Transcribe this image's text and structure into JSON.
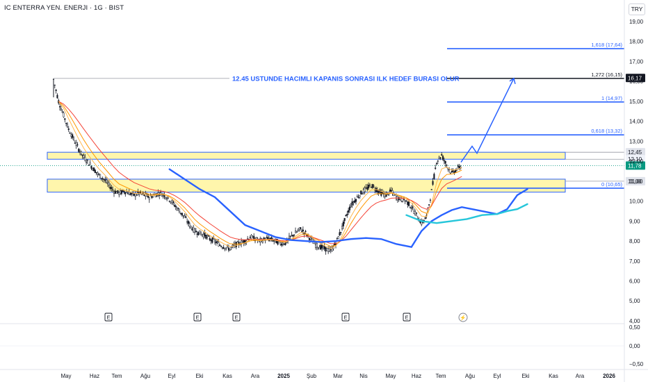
{
  "header": {
    "symbol_info": "IC ENTERRA YEN. ENERJI · 1G · BIST",
    "currency": "TRY"
  },
  "chart_data": {
    "type": "candlestick",
    "y_axis": {
      "ticks": [
        "19,00",
        "18,00",
        "17,00",
        "16,00",
        "15,00",
        "14,00",
        "13,00",
        "12,00",
        "11,00",
        "10,00",
        "9,00",
        "8,00",
        "7,00",
        "6,00",
        "5,00",
        "4,00"
      ],
      "tick_values": [
        19,
        18,
        17,
        16,
        15,
        14,
        13,
        12,
        11,
        10,
        9,
        8,
        7,
        6,
        5,
        4
      ]
    },
    "x_axis": {
      "ticks": [
        "May",
        "Haz",
        "Tem",
        "Ağu",
        "Eyl",
        "Eki",
        "Kas",
        "Ara",
        "2025",
        "Şub",
        "Mar",
        "Nis",
        "May",
        "Haz",
        "Tem",
        "Ağu",
        "Eyl",
        "Eki",
        "Kas",
        "Ara",
        "2026"
      ]
    },
    "price_path": [
      [
        0,
        16.1
      ],
      [
        1,
        15.0
      ],
      [
        2,
        14.3
      ],
      [
        3,
        13.6
      ],
      [
        4,
        13.1
      ],
      [
        5,
        12.6
      ],
      [
        6,
        12.2
      ],
      [
        7,
        11.9
      ],
      [
        8,
        11.6
      ],
      [
        9,
        11.3
      ],
      [
        10,
        11.1
      ],
      [
        11,
        10.8
      ],
      [
        12,
        10.5
      ],
      [
        13,
        10.4
      ],
      [
        14,
        10.5
      ],
      [
        15,
        10.4
      ],
      [
        16,
        10.3
      ],
      [
        17,
        10.4
      ],
      [
        18,
        10.3
      ],
      [
        19,
        10.2
      ],
      [
        20,
        10.3
      ],
      [
        21,
        10.4
      ],
      [
        22,
        10.3
      ],
      [
        23,
        10.1
      ],
      [
        24,
        9.8
      ],
      [
        25,
        9.5
      ],
      [
        26,
        9.2
      ],
      [
        27,
        8.8
      ],
      [
        28,
        8.5
      ],
      [
        29,
        8.4
      ],
      [
        30,
        8.3
      ],
      [
        31,
        8.1
      ],
      [
        32,
        8.0
      ],
      [
        33,
        7.8
      ],
      [
        34,
        7.7
      ],
      [
        35,
        7.6
      ],
      [
        36,
        7.8
      ],
      [
        37,
        7.9
      ],
      [
        38,
        8.0
      ],
      [
        39,
        8.2
      ],
      [
        40,
        8.1
      ],
      [
        41,
        8.0
      ],
      [
        42,
        8.1
      ],
      [
        43,
        8.1
      ],
      [
        44,
        8.0
      ],
      [
        45,
        7.9
      ],
      [
        46,
        7.9
      ],
      [
        47,
        8.2
      ],
      [
        48,
        8.4
      ],
      [
        49,
        8.6
      ],
      [
        50,
        8.4
      ],
      [
        51,
        8.1
      ],
      [
        52,
        7.8
      ],
      [
        53,
        7.7
      ],
      [
        54,
        7.6
      ],
      [
        55,
        7.5
      ],
      [
        56,
        7.9
      ],
      [
        57,
        8.5
      ],
      [
        58,
        9.2
      ],
      [
        59,
        9.8
      ],
      [
        60,
        10.1
      ],
      [
        61,
        10.4
      ],
      [
        62,
        10.6
      ],
      [
        63,
        10.8
      ],
      [
        64,
        10.6
      ],
      [
        65,
        10.4
      ],
      [
        66,
        10.3
      ],
      [
        67,
        10.5
      ],
      [
        68,
        10.2
      ],
      [
        69,
        10.1
      ],
      [
        70,
        10.0
      ],
      [
        71,
        9.7
      ],
      [
        72,
        9.3
      ],
      [
        73,
        8.9
      ],
      [
        74,
        9.2
      ],
      [
        75,
        10.5
      ],
      [
        76,
        12.0
      ],
      [
        77,
        12.3
      ],
      [
        78,
        11.8
      ],
      [
        79,
        11.4
      ],
      [
        80,
        11.6
      ],
      [
        81,
        11.78
      ]
    ],
    "moving_averages": [
      {
        "color": "#2962ff",
        "values": [
          [
            23,
            11.6
          ],
          [
            26,
            11.1
          ],
          [
            29,
            10.6
          ],
          [
            32,
            10.2
          ],
          [
            35,
            9.5
          ],
          [
            38,
            8.8
          ],
          [
            41,
            8.5
          ],
          [
            44,
            8.2
          ],
          [
            47,
            8.05
          ],
          [
            50,
            8.0
          ],
          [
            53,
            7.95
          ],
          [
            56,
            8.0
          ],
          [
            59,
            8.1
          ],
          [
            62,
            8.15
          ],
          [
            65,
            8.1
          ],
          [
            68,
            7.85
          ],
          [
            71,
            7.7
          ],
          [
            73,
            8.5
          ],
          [
            75,
            9.0
          ],
          [
            77,
            9.3
          ],
          [
            79,
            9.55
          ],
          [
            81,
            9.7
          ],
          [
            83,
            9.6
          ],
          [
            85,
            9.5
          ],
          [
            88,
            9.35
          ],
          [
            90,
            9.6
          ],
          [
            92,
            10.3
          ],
          [
            94,
            10.6
          ]
        ]
      },
      {
        "color": "#26c6da",
        "values": [
          [
            70,
            9.3
          ],
          [
            73,
            9.0
          ],
          [
            76,
            8.9
          ],
          [
            79,
            9.0
          ],
          [
            82,
            9.1
          ],
          [
            85,
            9.3
          ],
          [
            88,
            9.35
          ],
          [
            90,
            9.5
          ],
          [
            92,
            9.6
          ],
          [
            94,
            9.85
          ]
        ]
      }
    ],
    "annotation": "12.45 USTUNDE HACIMLI KAPANIS SONRASI ILK HEDEF BURASI OLUR",
    "zones": [
      {
        "low": 12.1,
        "high": 12.45
      },
      {
        "low": 10.45,
        "high": 11.1
      }
    ],
    "fib_levels": [
      {
        "label": "1,618 (17,64)",
        "value": 17.64
      },
      {
        "label": "1,272 (16,15)",
        "value": 16.15
      },
      {
        "label": "1 (14,97)",
        "value": 14.97
      },
      {
        "label": "0,618 (13,32)",
        "value": 13.32
      },
      {
        "label": "0 (10,65)",
        "value": 10.65
      }
    ],
    "price_labels": [
      {
        "text": "16,17",
        "value": 16.17,
        "style": "dark"
      },
      {
        "text": "12,45",
        "value": 12.45,
        "style": "grey"
      },
      {
        "text": "12,10",
        "value": 12.1,
        "style": "light"
      },
      {
        "text": "11,78",
        "value": 11.78,
        "style": "green"
      },
      {
        "text": "11,00",
        "value": 11.0,
        "style": "grey"
      }
    ],
    "last_price": 11.78,
    "earnings_markers": [
      "E",
      "E",
      "E",
      "E",
      "E"
    ],
    "lightning_marker": "⚡",
    "oscillator": {
      "ticks": [
        "0,50",
        "0,00",
        "−0,50"
      ],
      "tick_values": [
        0.5,
        0,
        -0.5
      ]
    },
    "colors": {
      "candle": "#131722",
      "zone_fill": "#fff59d",
      "zone_border": "#2962ff",
      "fib": "#2962ff",
      "annotation": "#2962ff",
      "green": "#089981",
      "ma_orange": "#ff9800",
      "ma_red": "#f44336"
    }
  }
}
